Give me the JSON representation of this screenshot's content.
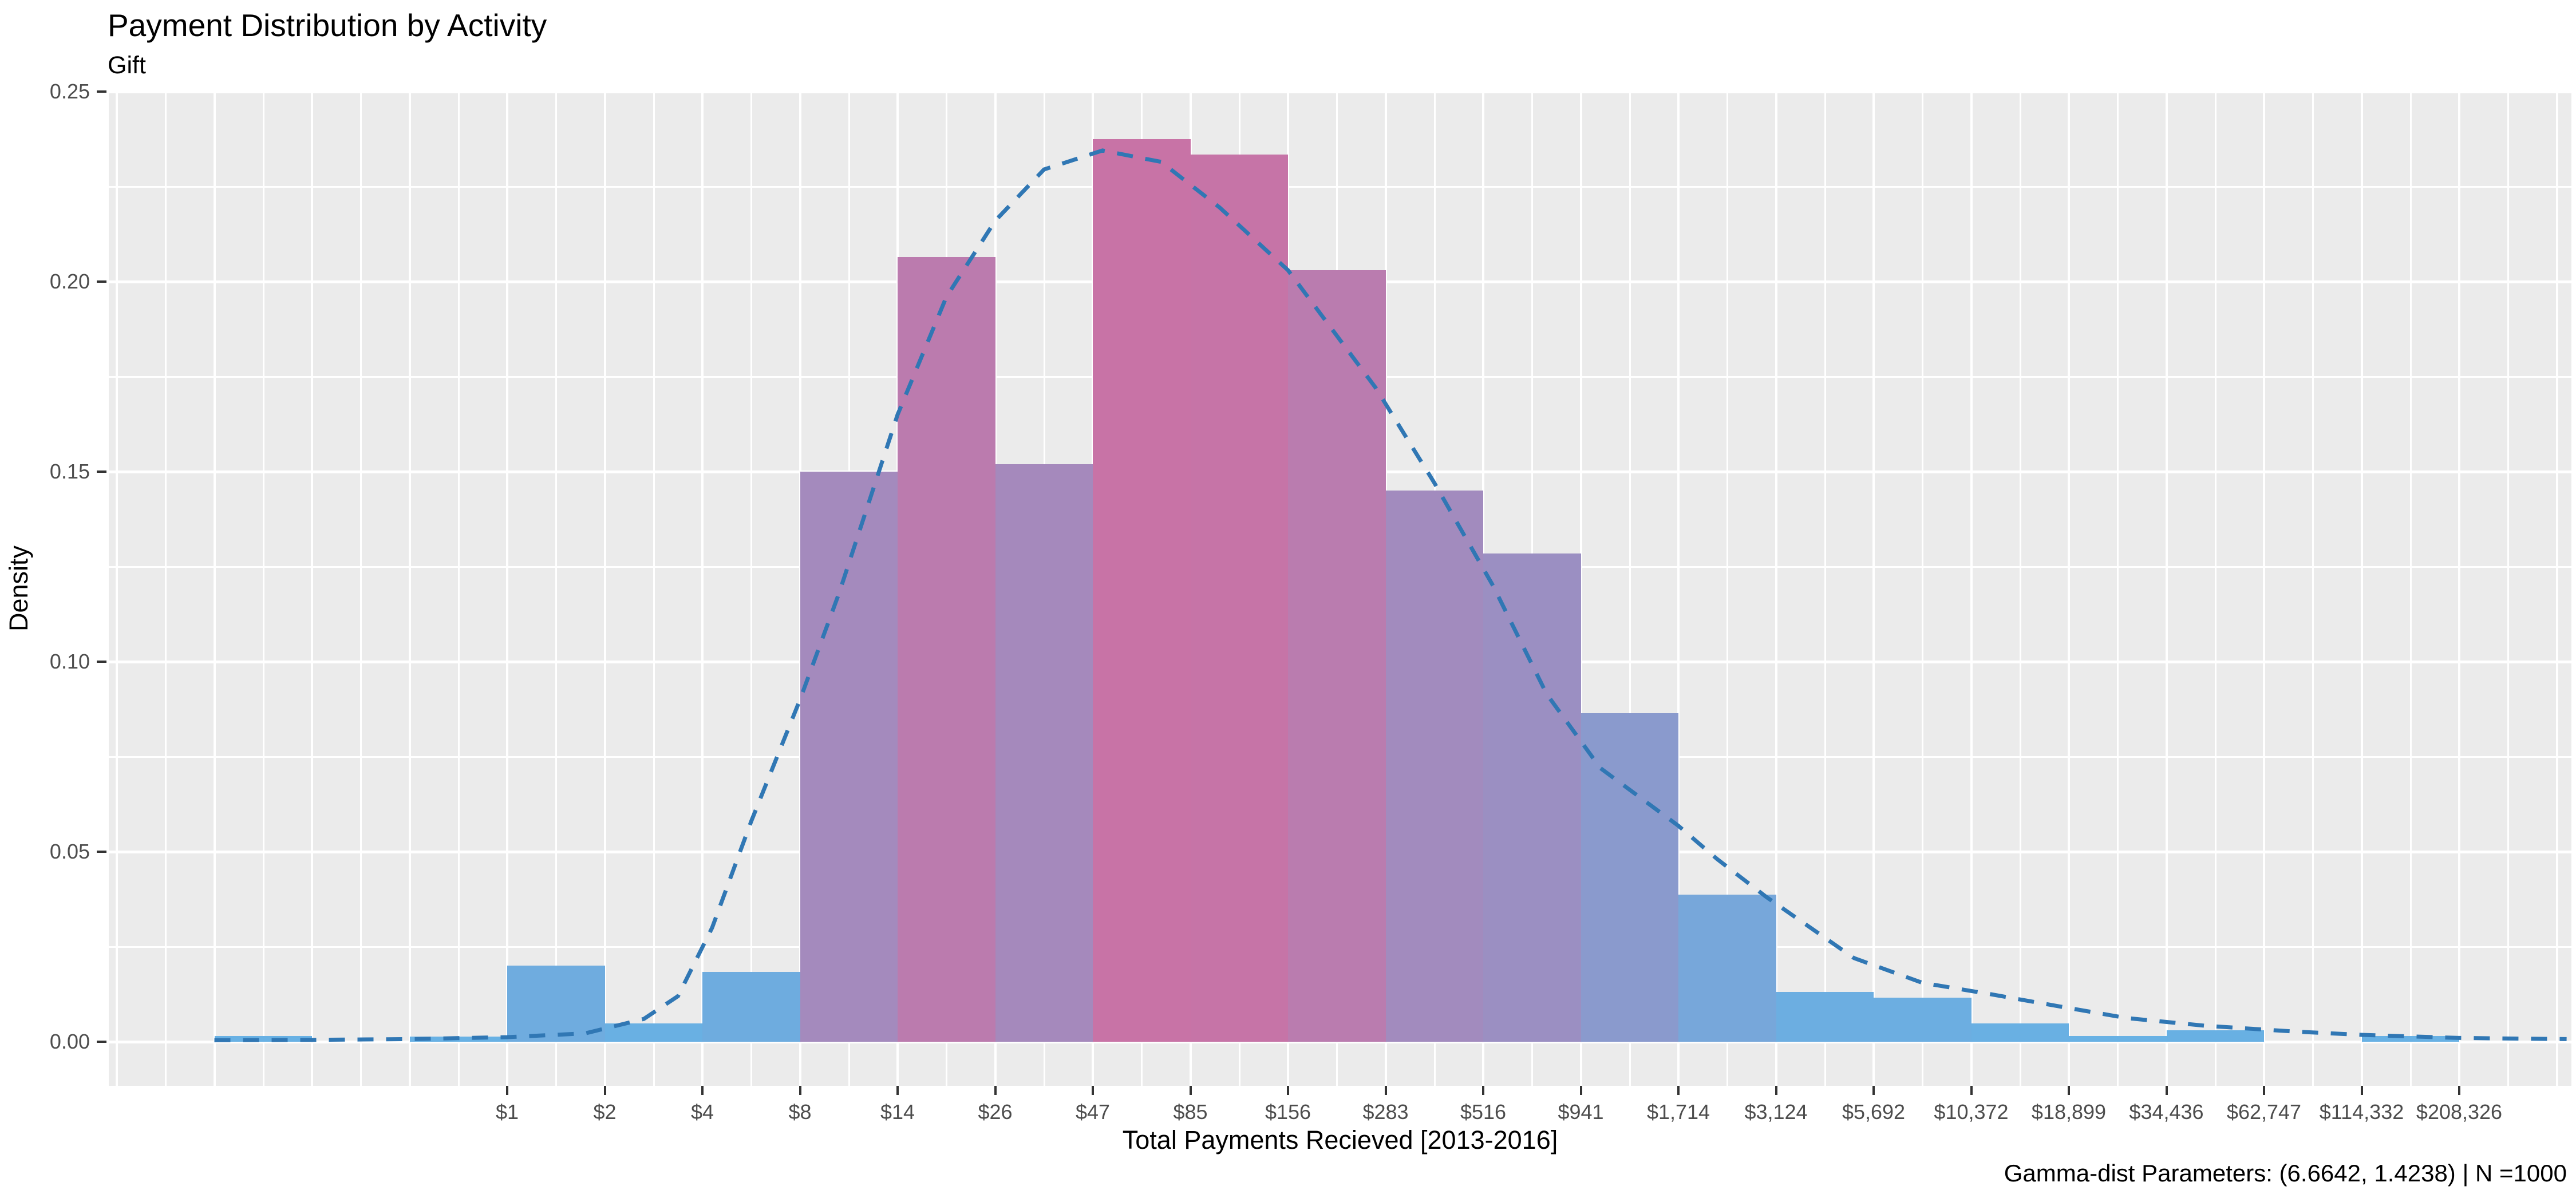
{
  "chart_data": {
    "type": "bar",
    "subtype": "histogram-with-density-curve",
    "title": "Payment Distribution by Activity",
    "subtitle": "Gift",
    "xlabel": "Total Payments Recieved [2013-2016]",
    "ylabel": "Density",
    "caption": "Gamma-dist Parameters: (6.6642, 1.4238) | N =1000",
    "legend": "none",
    "grid": "major and minor white gridlines on grey panel",
    "x_scale": "logarithmic bins, labels at bin edges",
    "x_tick_labels": [
      "$1",
      "$2",
      "$4",
      "$8",
      "$14",
      "$26",
      "$47",
      "$85",
      "$156",
      "$283",
      "$516",
      "$941",
      "$1,714",
      "$3,124",
      "$5,692",
      "$10,372",
      "$18,899",
      "$34,436",
      "$62,747",
      "$114,332",
      "$208,326"
    ],
    "y_tick_labels": [
      "0.00",
      "0.05",
      "0.10",
      "0.15",
      "0.20",
      "0.25"
    ],
    "y_tick_values": [
      0,
      0.05,
      0.1,
      0.15,
      0.2,
      0.25
    ],
    "y_minor_values": [
      0.025,
      0.075,
      0.125,
      0.175,
      0.225
    ],
    "ylim": [
      0,
      0.25
    ],
    "bins_note": "edge index i aligns with x_tick_labels[i]; negative indices are unlabeled bins left of $1",
    "bars": [
      {
        "edge_start": -3,
        "edge_end": -2,
        "density": 0.0015
      },
      {
        "edge_start": -1,
        "edge_end": 0,
        "density": 0.0014
      },
      {
        "edge_start": 0,
        "edge_end": 1,
        "density": 0.02
      },
      {
        "edge_start": 1,
        "edge_end": 2,
        "density": 0.0048
      },
      {
        "edge_start": 2,
        "edge_end": 3,
        "density": 0.0183
      },
      {
        "edge_start": 3,
        "edge_end": 4,
        "density": 0.15
      },
      {
        "edge_start": 4,
        "edge_end": 5,
        "density": 0.2065
      },
      {
        "edge_start": 5,
        "edge_end": 6,
        "density": 0.152
      },
      {
        "edge_start": 6,
        "edge_end": 7,
        "density": 0.2375
      },
      {
        "edge_start": 7,
        "edge_end": 8,
        "density": 0.2335
      },
      {
        "edge_start": 8,
        "edge_end": 9,
        "density": 0.203
      },
      {
        "edge_start": 9,
        "edge_end": 10,
        "density": 0.145
      },
      {
        "edge_start": 10,
        "edge_end": 11,
        "density": 0.1285
      },
      {
        "edge_start": 11,
        "edge_end": 12,
        "density": 0.0865
      },
      {
        "edge_start": 12,
        "edge_end": 13,
        "density": 0.0387
      },
      {
        "edge_start": 13,
        "edge_end": 14,
        "density": 0.0131
      },
      {
        "edge_start": 14,
        "edge_end": 15,
        "density": 0.0116
      },
      {
        "edge_start": 15,
        "edge_end": 16,
        "density": 0.0048
      },
      {
        "edge_start": 16,
        "edge_end": 17,
        "density": 0.0015
      },
      {
        "edge_start": 17,
        "edge_end": 18,
        "density": 0.003
      },
      {
        "edge_start": 19,
        "edge_end": 20,
        "density": 0.0015
      }
    ],
    "curve": {
      "name": "fitted gamma density",
      "style": "dashed",
      "points_u_density": [
        [
          -3.0,
          0.0004
        ],
        [
          -2.0,
          0.0005
        ],
        [
          -1.0,
          0.0007
        ],
        [
          0,
          0.0012
        ],
        [
          0.8,
          0.0022
        ],
        [
          1.4,
          0.006
        ],
        [
          1.75,
          0.012
        ],
        [
          2.1,
          0.03
        ],
        [
          2.5,
          0.058
        ],
        [
          3.0,
          0.09
        ],
        [
          3.4,
          0.118
        ],
        [
          4.0,
          0.165
        ],
        [
          4.5,
          0.196
        ],
        [
          5.0,
          0.216
        ],
        [
          5.5,
          0.2295
        ],
        [
          6.1,
          0.2345
        ],
        [
          6.7,
          0.2315
        ],
        [
          7.3,
          0.2195
        ],
        [
          8.0,
          0.203
        ],
        [
          8.9,
          0.172
        ],
        [
          9.5,
          0.147
        ],
        [
          10.1,
          0.12
        ],
        [
          10.65,
          0.0915
        ],
        [
          11.2,
          0.072
        ],
        [
          12.0,
          0.0568
        ],
        [
          12.4,
          0.048
        ],
        [
          12.9,
          0.0381
        ],
        [
          13.8,
          0.022
        ],
        [
          14.5,
          0.0155
        ],
        [
          15.2,
          0.0125
        ],
        [
          15.9,
          0.0093
        ],
        [
          16.6,
          0.0062
        ],
        [
          17.4,
          0.0042
        ],
        [
          18.3,
          0.0027
        ],
        [
          19.0,
          0.0018
        ],
        [
          20.0,
          0.001
        ],
        [
          21.1,
          0.0007
        ]
      ]
    },
    "colors": {
      "background": "#ffffff",
      "panel_background": "#ebebeb",
      "gridline": "#ffffff",
      "axis_tick_text": "#4d4d4d",
      "tick_mark": "#333333",
      "text": "#000000",
      "bar_gradient_low": "#67b1e4",
      "bar_gradient_high": "#c873a6",
      "bar_gradient_domain": [
        0,
        0.2375
      ],
      "curve_color": "#3077b4"
    }
  }
}
